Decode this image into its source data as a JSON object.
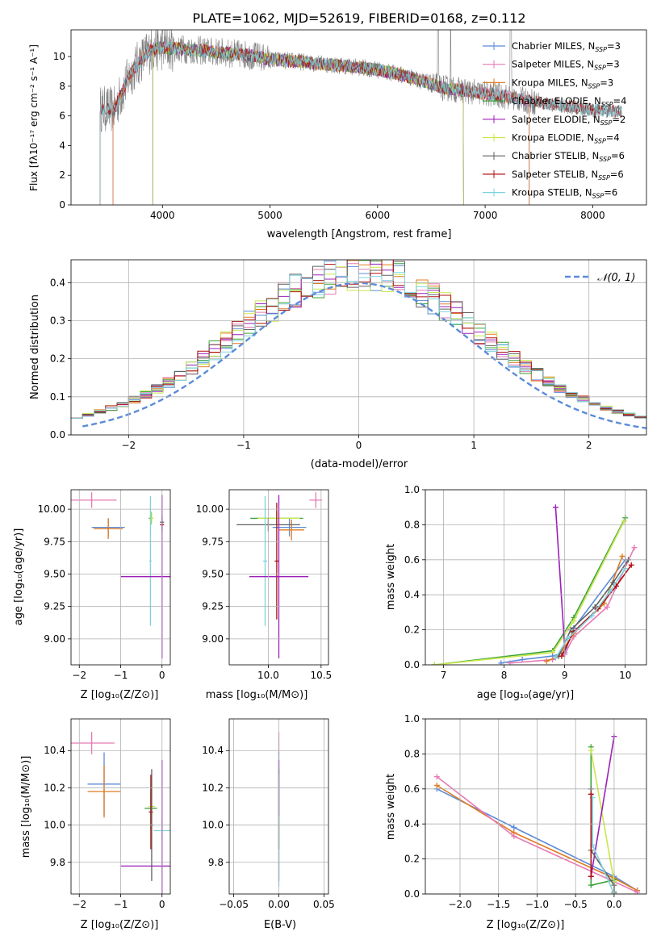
{
  "colors": {
    "c_miles": "#5b8bd8",
    "s_miles": "#e879b4",
    "k_miles": "#e07b20",
    "c_elodie": "#3aa33a",
    "s_elodie": "#9b1fb8",
    "k_elodie": "#c8e84a",
    "c_stelib": "#606060",
    "s_stelib": "#b01010",
    "k_stelib": "#7fd3e0",
    "spectrum": "#808080",
    "gauss": "#5b8bd8",
    "grid": "#b0b0b0"
  },
  "chart_data": [
    {
      "type": "line",
      "id": "spectrum",
      "title": "PLATE=1062, MJD=52619, FIBERID=0168, z=0.112",
      "xlabel": "wavelength [Angstrom, rest frame]",
      "ylabel": "Flux [fλ10⁻¹⁷ erg cm⁻² s⁻¹ A⁻¹]",
      "xlim": [
        3150,
        8500
      ],
      "ylim": [
        0,
        11.8
      ],
      "xticks": [
        4000,
        5000,
        6000,
        7000,
        8000
      ],
      "yticks": [
        0,
        2,
        4,
        6,
        8,
        10
      ],
      "grid": false,
      "legend_position": "right",
      "legend": [
        "Chabrier MILES, N_SSP=3",
        "Salpeter MILES, N_SSP=3",
        "Kroupa MILES, N_SSP=3",
        "Chabrier ELODIE, N_SSP=4",
        "Salpeter ELODIE, N_SSP=2",
        "Kroupa ELODIE, N_SSP=4",
        "Chabrier STELIB, N_SSP=6",
        "Salpeter STELIB, N_SSP=6",
        "Kroupa STELIB, N_SSP=6"
      ],
      "continuum": {
        "x": [
          3400,
          3550,
          3700,
          3800,
          3900,
          4000,
          4200,
          4500,
          4800,
          5000,
          5200,
          5500,
          5800,
          6000,
          6200,
          6400,
          6600,
          6800,
          7000,
          7200,
          7400,
          7600,
          7800,
          8000,
          8270
        ],
        "y": [
          6.5,
          6.4,
          8.8,
          9.8,
          10.5,
          10.6,
          10.5,
          10.3,
          10.1,
          9.8,
          9.7,
          9.5,
          9.3,
          9.1,
          8.8,
          8.4,
          7.9,
          7.7,
          7.5,
          7.3,
          7.0,
          6.8,
          6.6,
          6.4,
          6.3
        ]
      }
    },
    {
      "type": "line",
      "id": "residuals",
      "xlabel": "(data-model)/error",
      "ylabel": "Normed distribution",
      "xlim": [
        -2.5,
        2.5
      ],
      "ylim": [
        0,
        0.46
      ],
      "xticks": [
        -2,
        -1,
        0,
        1,
        2
      ],
      "yticks": [
        0.0,
        0.1,
        0.2,
        0.3,
        0.4
      ],
      "grid": true,
      "legend": [
        "𝒩(0, 1)"
      ],
      "legend_position": "top-right"
    },
    {
      "type": "scatter",
      "id": "age-vs-Z",
      "xlabel": "Z [log₁₀(Z/Z⊙)]",
      "ylabel": "age  [log₁₀(age/yr)]",
      "xlim": [
        -2.2,
        0.2
      ],
      "ylim": [
        8.8,
        10.15
      ],
      "xticks": [
        -2,
        -1,
        0
      ],
      "yticks": [
        9.0,
        9.25,
        9.5,
        9.75,
        10.0
      ],
      "grid": true,
      "points": [
        {
          "key": "s_miles",
          "x": -1.7,
          "y": 10.07,
          "xerr": 0.6,
          "yerr": 0.06
        },
        {
          "key": "c_miles",
          "x": -1.3,
          "y": 9.86,
          "xerr": 0.4,
          "yerr": 0.07
        },
        {
          "key": "k_miles",
          "x": -1.3,
          "y": 9.85,
          "xerr": 0.35,
          "yerr": 0.08
        },
        {
          "key": "c_elodie",
          "x": -0.27,
          "y": 9.93,
          "xerr": 0.05,
          "yerr": 0.05
        },
        {
          "key": "k_elodie",
          "x": -0.25,
          "y": 9.93,
          "xerr": 0.04,
          "yerr": 0.04
        },
        {
          "key": "k_stelib",
          "x": -0.28,
          "y": 9.6,
          "xerr": 0.03,
          "yerr": 0.5
        },
        {
          "key": "c_stelib",
          "x": 0.0,
          "y": 9.9,
          "xerr": 0.05,
          "yerr": 0.05
        },
        {
          "key": "s_stelib",
          "x": 0.0,
          "y": 9.88,
          "xerr": 0.05,
          "yerr": 0.05
        },
        {
          "key": "s_elodie",
          "x": 0.0,
          "y": 9.48,
          "xerr": 1.0,
          "yerr": 0.63
        }
      ]
    },
    {
      "type": "scatter",
      "id": "age-vs-mass",
      "xlabel": "mass [log₁₀(M/M⊙)]",
      "xlim": [
        9.63,
        10.57
      ],
      "ylim": [
        8.8,
        10.15
      ],
      "xticks": [
        10.0,
        10.5
      ],
      "yticks": [
        9.0,
        9.25,
        9.5,
        9.75,
        10.0
      ],
      "grid": true,
      "points": [
        {
          "key": "s_miles",
          "x": 10.45,
          "y": 10.07,
          "xerr": 0.06,
          "yerr": 0.06
        },
        {
          "key": "c_miles",
          "x": 10.2,
          "y": 9.86,
          "xerr": 0.16,
          "yerr": 0.07
        },
        {
          "key": "k_miles",
          "x": 10.22,
          "y": 9.84,
          "xerr": 0.12,
          "yerr": 0.08
        },
        {
          "key": "c_elodie",
          "x": 10.08,
          "y": 9.93,
          "xerr": 0.25,
          "yerr": 0.05
        },
        {
          "key": "k_elodie",
          "x": 10.1,
          "y": 9.93,
          "xerr": 0.2,
          "yerr": 0.04
        },
        {
          "key": "c_stelib",
          "x": 10.0,
          "y": 9.88,
          "xerr": 0.3,
          "yerr": 0.05
        },
        {
          "key": "k_stelib",
          "x": 9.97,
          "y": 9.6,
          "xerr": 0.02,
          "yerr": 0.5
        },
        {
          "key": "s_stelib",
          "x": 10.08,
          "y": 9.6,
          "xerr": 0.02,
          "yerr": 0.45
        },
        {
          "key": "s_elodie",
          "x": 10.1,
          "y": 9.48,
          "xerr": 0.28,
          "yerr": 0.63
        }
      ]
    },
    {
      "type": "line",
      "id": "weight-vs-age",
      "xlabel": "age  [log₁₀(age/yr)]",
      "ylabel": "mass weight",
      "xlim": [
        6.7,
        10.35
      ],
      "ylim": [
        0,
        1.0
      ],
      "xticks": [
        7,
        8,
        9,
        10
      ],
      "yticks": [
        0.0,
        0.2,
        0.4,
        0.6,
        0.8,
        1.0
      ],
      "grid": true,
      "series": [
        {
          "key": "c_elodie",
          "x": [
            6.85,
            8.8,
            9.15,
            10.0
          ],
          "y": [
            0.0,
            0.08,
            0.27,
            0.84
          ]
        },
        {
          "key": "k_elodie",
          "x": [
            6.85,
            8.8,
            9.15,
            9.98
          ],
          "y": [
            0.0,
            0.07,
            0.25,
            0.82
          ]
        },
        {
          "key": "s_elodie",
          "x": [
            8.85,
            9.0
          ],
          "y": [
            0.9,
            0.1
          ]
        },
        {
          "key": "c_miles",
          "x": [
            7.95,
            8.3,
            8.8,
            9.0,
            9.15,
            10.0
          ],
          "y": [
            0.01,
            0.03,
            0.05,
            0.07,
            0.21,
            0.6
          ]
        },
        {
          "key": "s_miles",
          "x": [
            8.1,
            8.8,
            9.0,
            9.15,
            9.7,
            10.15
          ],
          "y": [
            0.01,
            0.03,
            0.06,
            0.16,
            0.33,
            0.67
          ]
        },
        {
          "key": "k_miles",
          "x": [
            8.7,
            8.9,
            9.15,
            9.65,
            9.95
          ],
          "y": [
            0.02,
            0.05,
            0.18,
            0.35,
            0.62
          ]
        },
        {
          "key": "c_stelib",
          "x": [
            8.9,
            9.1,
            9.5,
            9.8,
            10.05
          ],
          "y": [
            0.05,
            0.2,
            0.33,
            0.47,
            0.6
          ]
        },
        {
          "key": "s_stelib",
          "x": [
            8.95,
            9.15,
            9.55,
            9.85,
            10.1
          ],
          "y": [
            0.05,
            0.19,
            0.32,
            0.45,
            0.57
          ]
        },
        {
          "key": "k_stelib",
          "x": [
            8.85,
            9.05,
            9.45,
            9.75,
            10.0
          ],
          "y": [
            0.04,
            0.15,
            0.28,
            0.42,
            0.55
          ]
        }
      ]
    },
    {
      "type": "scatter",
      "id": "mass-vs-Z",
      "xlabel": "Z [log₁₀(Z/Z⊙)]",
      "ylabel": "mass [log₁₀(M/M⊙)]",
      "xlim": [
        -2.2,
        0.2
      ],
      "ylim": [
        9.63,
        10.57
      ],
      "xticks": [
        -2,
        -1,
        0
      ],
      "yticks": [
        9.8,
        10.0,
        10.2,
        10.4
      ],
      "grid": true,
      "points": [
        {
          "key": "s_miles",
          "x": -1.7,
          "y": 10.44,
          "xerr": 0.55,
          "yerr": 0.06
        },
        {
          "key": "c_miles",
          "x": -1.4,
          "y": 10.22,
          "xerr": 0.4,
          "yerr": 0.17
        },
        {
          "key": "k_miles",
          "x": -1.4,
          "y": 10.18,
          "xerr": 0.4,
          "yerr": 0.14
        },
        {
          "key": "c_elodie",
          "x": -0.27,
          "y": 10.09,
          "xerr": 0.15,
          "yerr": 0.12
        },
        {
          "key": "k_elodie",
          "x": -0.25,
          "y": 10.1,
          "xerr": 0.08,
          "yerr": 0.1
        },
        {
          "key": "s_stelib",
          "x": -0.27,
          "y": 10.07,
          "xerr": 0.05,
          "yerr": 0.2
        },
        {
          "key": "c_stelib",
          "x": -0.25,
          "y": 10.0,
          "xerr": 0.05,
          "yerr": 0.3
        },
        {
          "key": "k_stelib",
          "x": 0.0,
          "y": 9.97,
          "xerr": 0.2,
          "yerr": 0.05
        },
        {
          "key": "s_elodie",
          "x": 0.0,
          "y": 9.78,
          "xerr": 1.0,
          "yerr": 0.57
        }
      ]
    },
    {
      "type": "scatter",
      "id": "mass-vs-EBV",
      "xlabel": "E(B-V)",
      "xlim": [
        -0.055,
        0.055
      ],
      "ylim": [
        9.63,
        10.57
      ],
      "xticks": [
        -0.05,
        0.0,
        0.05
      ],
      "yticks": [
        9.8,
        10.0,
        10.2,
        10.4
      ],
      "grid": true,
      "points": [
        {
          "key": "s_miles",
          "x": 0.0,
          "y": 10.44,
          "xerr": 0.0,
          "yerr": 0.06
        },
        {
          "key": "c_miles",
          "x": 0.0,
          "y": 10.22,
          "xerr": 0.0,
          "yerr": 0.17
        },
        {
          "key": "s_elodie",
          "x": 0.0,
          "y": 10.2,
          "xerr": 0.0,
          "yerr": 0.15
        },
        {
          "key": "s_stelib",
          "x": 0.0,
          "y": 10.07,
          "xerr": 0.0,
          "yerr": 0.2
        },
        {
          "key": "c_stelib",
          "x": 0.0,
          "y": 10.0,
          "xerr": 0.0,
          "yerr": 0.3
        },
        {
          "key": "k_stelib",
          "x": 0.0,
          "y": 9.97,
          "xerr": 0.0,
          "yerr": 0.3
        }
      ]
    },
    {
      "type": "line",
      "id": "weight-vs-Z",
      "xlabel": "Z [log₁₀(Z/Z⊙)]",
      "ylabel": "mass weight",
      "xlim": [
        -2.45,
        0.42
      ],
      "ylim": [
        0,
        1.0
      ],
      "xticks": [
        -2.0,
        -1.5,
        -1.0,
        -0.5,
        0.0
      ],
      "yticks": [
        0.0,
        0.2,
        0.4,
        0.6,
        0.8,
        1.0
      ],
      "grid": true,
      "series": [
        {
          "key": "c_miles",
          "x": [
            -2.3,
            -1.3,
            0.0,
            0.3
          ],
          "y": [
            0.6,
            0.38,
            0.1,
            0.02
          ]
        },
        {
          "key": "k_miles",
          "x": [
            -2.3,
            -1.3,
            0.0,
            0.3
          ],
          "y": [
            0.62,
            0.35,
            0.09,
            0.02
          ]
        },
        {
          "key": "s_miles",
          "x": [
            -2.3,
            -1.3,
            0.3
          ],
          "y": [
            0.67,
            0.33,
            0.01
          ]
        },
        {
          "key": "c_elodie",
          "x": [
            -0.3,
            -0.3,
            0.0,
            0.0
          ],
          "y": [
            0.84,
            0.05,
            0.08,
            0.0
          ]
        },
        {
          "key": "k_elodie",
          "x": [
            -0.3,
            0.0,
            0.0
          ],
          "y": [
            0.82,
            0.07,
            0.0
          ]
        },
        {
          "key": "s_elodie",
          "x": [
            0.0,
            -0.3
          ],
          "y": [
            0.9,
            0.1
          ]
        },
        {
          "key": "c_stelib",
          "x": [
            -0.3,
            -0.3,
            0.0,
            0.0
          ],
          "y": [
            0.6,
            0.25,
            0.05,
            0.01
          ]
        },
        {
          "key": "k_stelib",
          "x": [
            -0.28,
            -0.28,
            0.0
          ],
          "y": [
            0.55,
            0.28,
            0.0
          ]
        },
        {
          "key": "s_stelib",
          "x": [
            -0.3,
            -0.3
          ],
          "y": [
            0.57,
            0.1
          ]
        }
      ]
    }
  ]
}
